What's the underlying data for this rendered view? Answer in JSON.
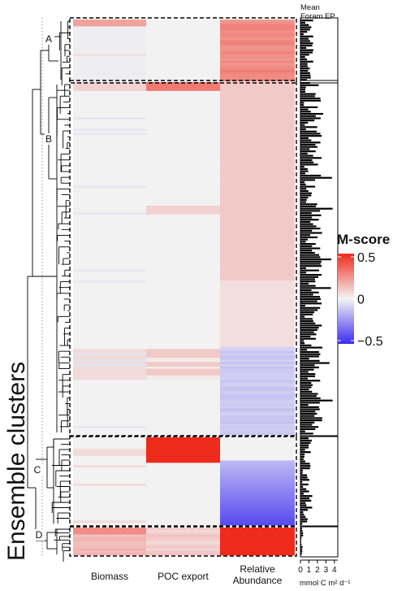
{
  "chart_data": {
    "type": "heatmap",
    "ylabel": "Ensemble clusters",
    "columns": [
      "Biomass",
      "POC export",
      "Relative\nAbundance"
    ],
    "clusters": [
      {
        "label": "A",
        "rows": 27,
        "tone": {
          "Biomass": 0.05,
          "POC export": 0.0,
          "Relative\nAbundance": 0.25
        }
      },
      {
        "label": "B",
        "rows": 160,
        "tone": {
          "Biomass": 0.02,
          "POC export": 0.04,
          "Relative\nAbundance": 0.08
        }
      },
      {
        "label": "C",
        "rows": 38,
        "tone": {
          "Biomass": 0.01,
          "POC export": 0.55,
          "Relative\nAbundance": -0.3
        }
      },
      {
        "label": "D",
        "rows": 12,
        "tone": {
          "Biomass": 0.15,
          "POC export": 0.1,
          "Relative\nAbundance": 0.45
        }
      }
    ],
    "legend": {
      "title": "M-score",
      "ticks": [
        0.5,
        0,
        -0.5
      ],
      "tick_labels": [
        "0.5",
        "0",
        "−0.5"
      ],
      "range": [
        -0.5,
        0.5
      ],
      "colors": {
        "low": "#3b2cf0",
        "mid": "#f2f2f2",
        "high": "#ee2a1b"
      }
    },
    "bar_panel": {
      "title_line1": "Mean",
      "title_line2": "Foram EP",
      "axis_ticks": [
        "0",
        "1",
        "2",
        "3",
        "4"
      ],
      "axis_label": "mmol C m² d⁻¹",
      "xlim": [
        0,
        4.4
      ]
    }
  }
}
